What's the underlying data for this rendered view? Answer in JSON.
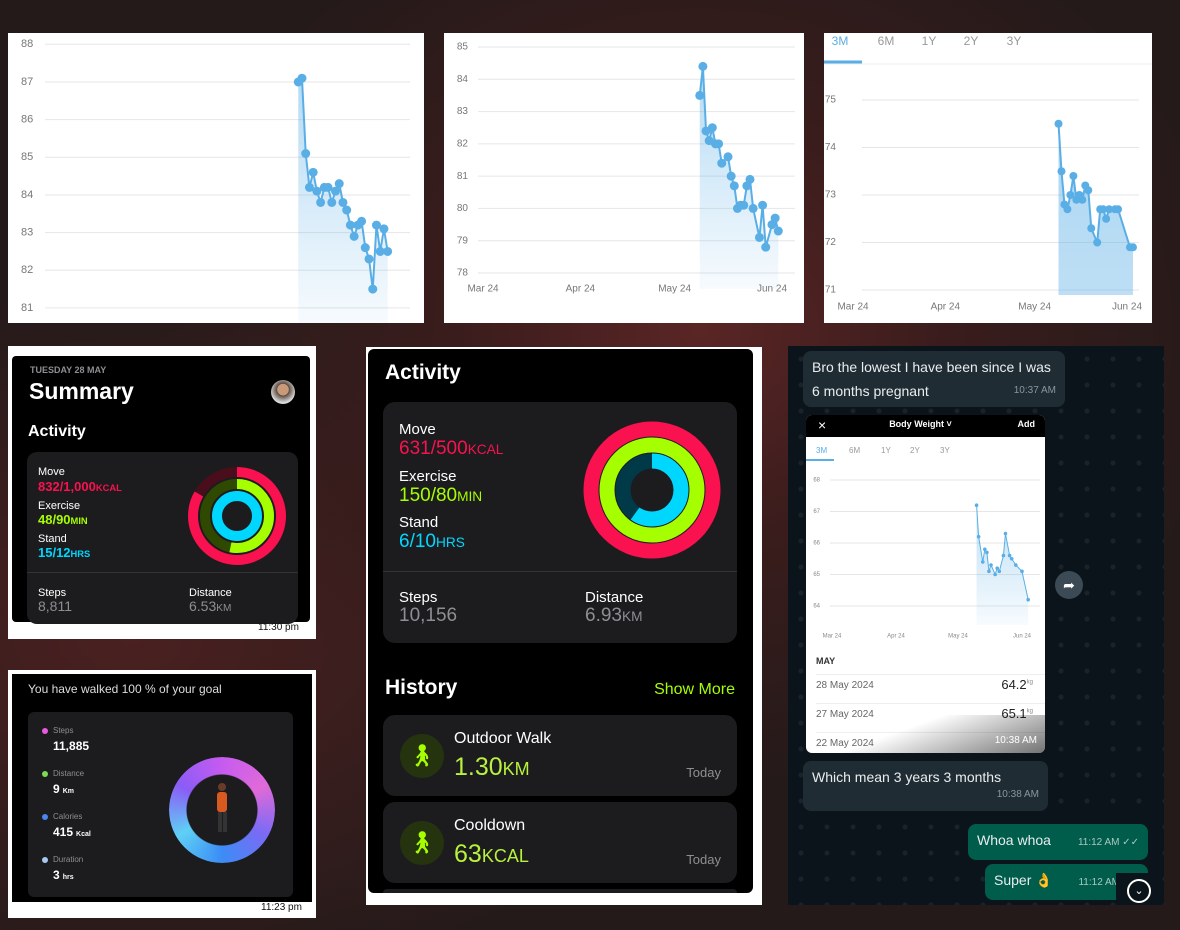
{
  "chart_data": [
    {
      "type": "line",
      "color": "#5aaee6",
      "x": [
        65,
        66,
        67,
        68,
        69,
        70,
        71,
        72,
        73,
        74,
        75,
        76,
        77,
        78,
        79,
        80,
        81,
        82,
        83,
        84,
        85,
        86,
        87,
        88,
        89
      ],
      "values": [
        87.0,
        87.1,
        85.1,
        84.2,
        84.6,
        84.1,
        83.8,
        84.2,
        84.2,
        83.8,
        84.1,
        84.3,
        83.8,
        83.6,
        83.2,
        82.9,
        83.2,
        83.3,
        82.6,
        82.3,
        81.5,
        83.2,
        82.5,
        83.1,
        82.5
      ],
      "xlim": [
        -3,
        95
      ],
      "ylim": [
        80.6,
        88.3
      ],
      "yticks": [
        81,
        82,
        83,
        84,
        85,
        86,
        87,
        88
      ],
      "grid": true
    },
    {
      "type": "line",
      "color": "#5aaee6",
      "x": [
        69,
        70,
        71,
        72,
        73,
        74,
        75,
        76,
        78,
        79,
        80,
        81,
        82,
        83,
        84,
        85,
        86,
        88,
        89,
        90,
        92,
        93,
        94
      ],
      "values": [
        83.5,
        84.4,
        82.4,
        82.1,
        82.5,
        82.0,
        82.0,
        81.4,
        81.6,
        81.0,
        80.7,
        80.0,
        80.1,
        80.1,
        80.7,
        80.9,
        80.0,
        79.1,
        80.1,
        78.8,
        79.5,
        79.7,
        79.3
      ],
      "xlim": [
        0,
        92
      ],
      "ylim": [
        78,
        85
      ],
      "yticks": [
        78,
        79,
        80,
        81,
        82,
        83,
        84,
        85
      ],
      "xticks": [
        {
          "value": 0,
          "label": "Mar 24"
        },
        {
          "value": 31,
          "label": "Apr 24"
        },
        {
          "value": 61,
          "label": "May 24"
        },
        {
          "value": 92,
          "label": "Jun 24"
        }
      ],
      "grid": true
    },
    {
      "type": "line",
      "color": "#5aaee6",
      "tabs": [
        "3M",
        "6M",
        "1Y",
        "2Y",
        "3Y"
      ],
      "x": [
        69,
        70,
        71,
        72,
        73,
        74,
        75,
        76,
        77,
        78,
        79,
        80,
        82,
        83,
        84,
        85,
        86,
        88,
        89,
        93,
        94
      ],
      "values": [
        74.5,
        73.5,
        72.8,
        72.7,
        73.0,
        73.4,
        72.9,
        73.0,
        72.9,
        73.2,
        73.1,
        72.3,
        72.0,
        72.7,
        72.7,
        72.5,
        72.7,
        72.7,
        72.7,
        71.9,
        71.9
      ],
      "xlim": [
        0,
        92
      ],
      "ylim": [
        71,
        75
      ],
      "yticks": [
        71,
        72,
        73,
        74,
        75
      ],
      "xticks": [
        {
          "value": 0,
          "label": "Mar 24"
        },
        {
          "value": 31,
          "label": "Apr 24"
        },
        {
          "value": 61,
          "label": "May 24"
        },
        {
          "value": 92,
          "label": "Jun 24"
        }
      ],
      "grid": true
    },
    {
      "type": "line",
      "color": "#5aaee6",
      "x": [
        70,
        71,
        73,
        74,
        75,
        76,
        77,
        79,
        80,
        81,
        83,
        84,
        86,
        87,
        89,
        92,
        95
      ],
      "values": [
        67.2,
        66.2,
        65.4,
        65.8,
        65.7,
        65.1,
        65.3,
        65.0,
        65.2,
        65.1,
        65.6,
        66.3,
        65.6,
        65.5,
        65.3,
        65.1,
        64.2
      ],
      "xlim": [
        0,
        92
      ],
      "ylim": [
        64,
        68
      ],
      "yticks": [
        64,
        65,
        66,
        67,
        68
      ],
      "xticks": [
        {
          "value": 0,
          "label": "Mar 24"
        },
        {
          "value": 31,
          "label": "Apr 24"
        },
        {
          "value": 61,
          "label": "May 24"
        },
        {
          "value": 92,
          "label": "Jun 24"
        }
      ],
      "grid": true
    }
  ],
  "summary": {
    "date": "TUESDAY 28 MAY",
    "title": "Summary",
    "section": "Activity",
    "move": {
      "label": "Move",
      "value": "832/1,000",
      "unit": "KCAL"
    },
    "exercise": {
      "label": "Exercise",
      "value": "48/90",
      "unit": "MIN"
    },
    "stand": {
      "label": "Stand",
      "value": "15/12",
      "unit": "HRS"
    },
    "steps": {
      "label": "Steps",
      "value": "8,811"
    },
    "distance": {
      "label": "Distance",
      "value": "6.53",
      "unit": "KM"
    },
    "time": "11:30 pm"
  },
  "goal": {
    "headline": "You have walked 100 % of your goal",
    "stats": [
      {
        "label": "Steps",
        "value": "11,885"
      },
      {
        "label": "Distance",
        "value": "9",
        "unit": "Km"
      },
      {
        "label": "Calories",
        "value": "415",
        "unit": "Kcal"
      },
      {
        "label": "Duration",
        "value": "3",
        "unit": "hrs"
      }
    ],
    "time": "11:23 pm"
  },
  "activity": {
    "title": "Activity",
    "move": {
      "label": "Move",
      "value": "631/500",
      "unit": "KCAL"
    },
    "exercise": {
      "label": "Exercise",
      "value": "150/80",
      "unit": "MIN"
    },
    "stand": {
      "label": "Stand",
      "value": "6/10",
      "unit": "HRS"
    },
    "steps": {
      "label": "Steps",
      "value": "10,156"
    },
    "distance": {
      "label": "Distance",
      "value": "6.93",
      "unit": "KM"
    },
    "history": "History",
    "show_more": "Show More",
    "workouts": [
      {
        "name": "Outdoor Walk",
        "value": "1.30",
        "unit": "KM",
        "when": "Today"
      },
      {
        "name": "Cooldown",
        "value": "63",
        "unit": "KCAL",
        "when": "Today"
      }
    ]
  },
  "chat": {
    "messages": [
      {
        "text": "Bro the lowest I have been since I was 6 months pregnant",
        "time": "10:37 AM"
      },
      {
        "text": "Which mean 3 years 3 months",
        "time": "10:38 AM"
      },
      {
        "text": "Whoa whoa",
        "time": "11:12 AM"
      },
      {
        "text": "Super 👌",
        "time": "11:12 AM"
      }
    ],
    "shot": {
      "title": "Body Weight",
      "action": "Add",
      "tabs": [
        "3M",
        "6M",
        "1Y",
        "2Y",
        "3Y"
      ],
      "month": "MAY",
      "entries": [
        {
          "date": "28 May 2024",
          "value": "64.2",
          "unit": "kg"
        },
        {
          "date": "27 May 2024",
          "value": "65.1",
          "unit": "kg"
        },
        {
          "date": "22 May 2024"
        }
      ],
      "time": "10:38 AM"
    }
  }
}
